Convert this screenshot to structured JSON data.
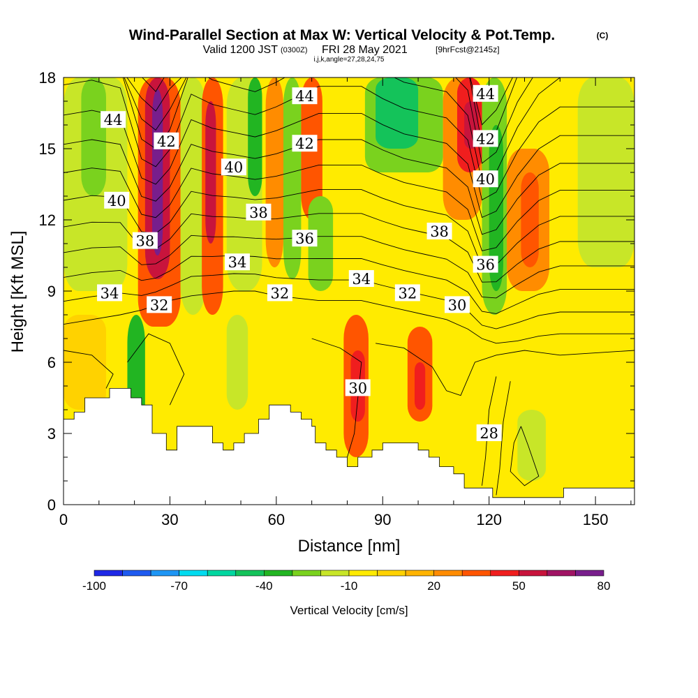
{
  "header": {
    "title": "Wind-Parallel Section at Max W: Vertical Velocity & Pot.Temp.",
    "title_mark": "(C)",
    "valid_prefix": "Valid 1200 JST",
    "valid_zulu": "(0300Z)",
    "valid_date": "FRI 28 May 2021",
    "fcst": "[9hrFcst@2145z]",
    "indices": "i,j,k,angle=27,28,24,75"
  },
  "chart_data": {
    "type": "contour",
    "xlabel": "Distance [nm]",
    "ylabel": "Height [Kft MSL]",
    "xlim": [
      0,
      161
    ],
    "ylim": [
      0,
      18
    ],
    "x_ticks": [
      0,
      30,
      60,
      90,
      120,
      150
    ],
    "y_ticks": [
      0,
      3,
      6,
      9,
      12,
      15,
      18
    ],
    "colorbar": {
      "title": "Vertical Velocity [cm/s]",
      "tick_labels": [
        "-100",
        "-70",
        "-40",
        "-10",
        "20",
        "50",
        "80"
      ],
      "levels": [
        -100,
        -90,
        -80,
        -70,
        -60,
        -50,
        -40,
        -30,
        -20,
        -10,
        0,
        10,
        20,
        30,
        40,
        50,
        60,
        70,
        80
      ],
      "colors": [
        "#1e28e6",
        "#1e5af0",
        "#1e96f5",
        "#00dcf0",
        "#00d7a0",
        "#14c35a",
        "#22b522",
        "#7ad21e",
        "#c8e628",
        "#ffeb00",
        "#ffd200",
        "#ffb400",
        "#ff8c00",
        "#ff5500",
        "#f01e1e",
        "#c8143c",
        "#a01464",
        "#781e8c"
      ]
    },
    "vertical_velocity_cells": [
      {
        "x": [
          0,
          18
        ],
        "y": [
          9,
          18
        ],
        "w": -20
      },
      {
        "x": [
          5,
          12
        ],
        "y": [
          13,
          18
        ],
        "w": -30
      },
      {
        "x": [
          0,
          12
        ],
        "y": [
          4,
          8
        ],
        "w": 0
      },
      {
        "x": [
          18,
          23
        ],
        "y": [
          1,
          8
        ],
        "w": -40
      },
      {
        "x": [
          21,
          33
        ],
        "y": [
          7.5,
          18
        ],
        "w": 30
      },
      {
        "x": [
          23,
          30
        ],
        "y": [
          9.5,
          18
        ],
        "w": 50
      },
      {
        "x": [
          25,
          28
        ],
        "y": [
          10.5,
          17.5
        ],
        "w": 80
      },
      {
        "x": [
          33,
          40
        ],
        "y": [
          8,
          18
        ],
        "w": -20
      },
      {
        "x": [
          39,
          45
        ],
        "y": [
          8,
          18
        ],
        "w": 30
      },
      {
        "x": [
          40,
          43
        ],
        "y": [
          11,
          17
        ],
        "w": 50
      },
      {
        "x": [
          46,
          52
        ],
        "y": [
          4,
          8
        ],
        "w": -20
      },
      {
        "x": [
          46,
          56
        ],
        "y": [
          9,
          18
        ],
        "w": -20
      },
      {
        "x": [
          52,
          56
        ],
        "y": [
          13,
          18
        ],
        "w": -40
      },
      {
        "x": [
          57,
          62
        ],
        "y": [
          10,
          18
        ],
        "w": 20
      },
      {
        "x": [
          62,
          67
        ],
        "y": [
          9.5,
          18
        ],
        "w": -30
      },
      {
        "x": [
          67,
          73
        ],
        "y": [
          12,
          18
        ],
        "w": 30
      },
      {
        "x": [
          69,
          76
        ],
        "y": [
          9,
          13
        ],
        "w": -30
      },
      {
        "x": [
          79,
          86
        ],
        "y": [
          2,
          8
        ],
        "w": 30
      },
      {
        "x": [
          81,
          85
        ],
        "y": [
          3.5,
          6.5
        ],
        "w": 40
      },
      {
        "x": [
          85,
          107
        ],
        "y": [
          14,
          18
        ],
        "w": -30
      },
      {
        "x": [
          88,
          100
        ],
        "y": [
          15,
          18
        ],
        "w": -50
      },
      {
        "x": [
          97,
          104
        ],
        "y": [
          3.5,
          7.5
        ],
        "w": 30
      },
      {
        "x": [
          99,
          102
        ],
        "y": [
          4,
          6
        ],
        "w": 40
      },
      {
        "x": [
          107,
          118
        ],
        "y": [
          12,
          18
        ],
        "w": 20
      },
      {
        "x": [
          111,
          118
        ],
        "y": [
          14,
          18
        ],
        "w": 40
      },
      {
        "x": [
          113,
          117
        ],
        "y": [
          15,
          17
        ],
        "w": 50
      },
      {
        "x": [
          118,
          125
        ],
        "y": [
          8,
          18
        ],
        "w": -30
      },
      {
        "x": [
          120,
          124
        ],
        "y": [
          9,
          16
        ],
        "w": -40
      },
      {
        "x": [
          125,
          137
        ],
        "y": [
          9,
          15
        ],
        "w": 20
      },
      {
        "x": [
          129,
          134
        ],
        "y": [
          10,
          14
        ],
        "w": 30
      },
      {
        "x": [
          128,
          136
        ],
        "y": [
          1,
          4
        ],
        "w": -20
      },
      {
        "x": [
          145,
          161
        ],
        "y": [
          10,
          18
        ],
        "w": -20
      }
    ],
    "theta_contours_K": [
      28,
      30,
      32,
      34,
      36,
      38,
      40,
      42,
      44
    ],
    "theta_contour_labels": [
      {
        "text": "44",
        "x": 14,
        "y": 16.2
      },
      {
        "text": "42",
        "x": 29,
        "y": 15.3
      },
      {
        "text": "40",
        "x": 15,
        "y": 12.8
      },
      {
        "text": "38",
        "x": 23,
        "y": 11.1
      },
      {
        "text": "34",
        "x": 13,
        "y": 8.9
      },
      {
        "text": "32",
        "x": 27,
        "y": 8.4
      },
      {
        "text": "40",
        "x": 48,
        "y": 14.2
      },
      {
        "text": "38",
        "x": 55,
        "y": 12.3
      },
      {
        "text": "34",
        "x": 49,
        "y": 10.2
      },
      {
        "text": "44",
        "x": 68,
        "y": 17.2
      },
      {
        "text": "42",
        "x": 68,
        "y": 15.2
      },
      {
        "text": "36",
        "x": 68,
        "y": 11.2
      },
      {
        "text": "32",
        "x": 61,
        "y": 8.9
      },
      {
        "text": "34",
        "x": 84,
        "y": 9.5
      },
      {
        "text": "32",
        "x": 97,
        "y": 8.9
      },
      {
        "text": "30",
        "x": 111,
        "y": 8.4
      },
      {
        "text": "30",
        "x": 83,
        "y": 4.9
      },
      {
        "text": "38",
        "x": 106,
        "y": 11.5
      },
      {
        "text": "44",
        "x": 119,
        "y": 17.3
      },
      {
        "text": "42",
        "x": 119,
        "y": 15.4
      },
      {
        "text": "40",
        "x": 119,
        "y": 13.7
      },
      {
        "text": "36",
        "x": 119,
        "y": 10.1
      },
      {
        "text": "28",
        "x": 120,
        "y": 3.0
      }
    ]
  }
}
